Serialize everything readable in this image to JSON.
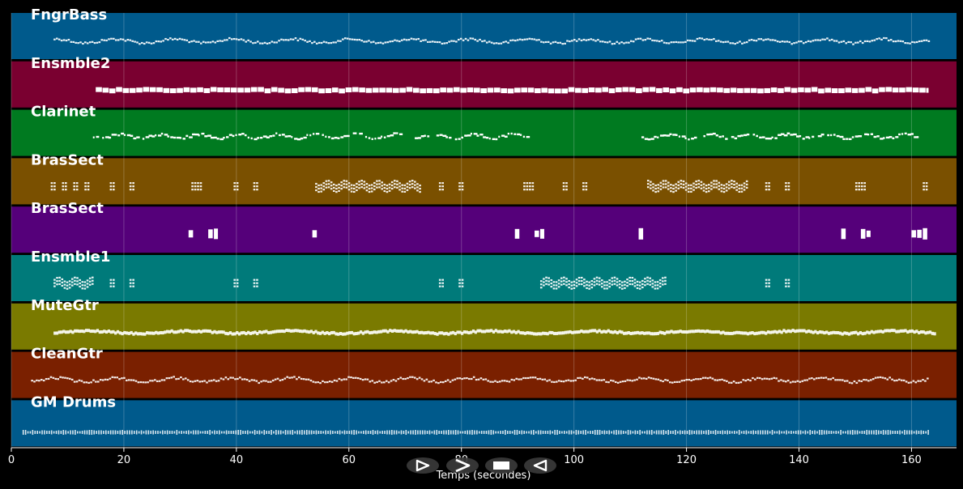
{
  "chart_data": {
    "type": "piano-roll",
    "xlabel": "Temps (secondes)",
    "xlim": [
      0,
      168
    ],
    "x_ticks": [
      0,
      20,
      40,
      60,
      80,
      100,
      120,
      140,
      160
    ],
    "grid": true,
    "tracks": [
      {
        "name": "FngrBass",
        "color": "#005a8c",
        "activity": [
          [
            7.5,
            163
          ]
        ],
        "style": "dense-small"
      },
      {
        "name": "Ensmble2",
        "color": "#7a0030",
        "activity": [
          [
            15,
            163
          ]
        ],
        "style": "sustained"
      },
      {
        "name": "Clarinet",
        "color": "#007a20",
        "activity": [
          [
            14.5,
            93
          ],
          [
            112,
            163
          ]
        ],
        "style": "melody"
      },
      {
        "name": "BrasSect",
        "color": "#7a5000",
        "activity": [
          [
            7,
            8
          ],
          [
            9,
            10
          ],
          [
            11,
            12
          ],
          [
            13,
            14
          ],
          [
            17.5,
            18.5
          ],
          [
            21,
            22
          ],
          [
            32,
            34
          ],
          [
            39.5,
            40.5
          ],
          [
            43,
            44
          ],
          [
            54,
            72.5
          ],
          [
            76,
            77
          ],
          [
            79.5,
            80.5
          ],
          [
            91,
            93
          ],
          [
            98,
            99
          ],
          [
            101.5,
            102.5
          ],
          [
            113,
            131
          ],
          [
            134,
            135
          ],
          [
            137.5,
            138.5
          ],
          [
            150,
            152
          ],
          [
            162,
            163
          ]
        ],
        "style": "chords"
      },
      {
        "name": "BrasSect",
        "color": "#55007a",
        "activity": [
          [
            31.5,
            32.5
          ],
          [
            35,
            36.5
          ],
          [
            53.5,
            54.5
          ],
          [
            89.5,
            90.5
          ],
          [
            93,
            94.5
          ],
          [
            111.5,
            112.5
          ],
          [
            147.5,
            148.5
          ],
          [
            151,
            152.5
          ],
          [
            160,
            163
          ]
        ],
        "style": "blocks"
      },
      {
        "name": "Ensmble1",
        "color": "#007a7a",
        "activity": [
          [
            7.5,
            14.5
          ],
          [
            17.5,
            18.5
          ],
          [
            21,
            22
          ],
          [
            39.5,
            40.5
          ],
          [
            43,
            44
          ],
          [
            76,
            77
          ],
          [
            79.5,
            80.5
          ],
          [
            94,
            116.5
          ],
          [
            134,
            135
          ],
          [
            137.5,
            138.5
          ]
        ],
        "style": "chords"
      },
      {
        "name": "MuteGtr",
        "color": "#7a7a00",
        "activity": [
          [
            7.5,
            164
          ]
        ],
        "style": "dense"
      },
      {
        "name": "CleanGtr",
        "color": "#7a2000",
        "activity": [
          [
            3.5,
            163
          ]
        ],
        "style": "dense-small"
      },
      {
        "name": "GM Drums",
        "color": "#005a8c",
        "activity": [
          [
            2,
            163
          ]
        ],
        "style": "drums"
      }
    ]
  },
  "transport": {
    "buttons": [
      {
        "name": "rewind-button",
        "icon": "rewind-icon"
      },
      {
        "name": "play-button",
        "icon": "play-icon"
      },
      {
        "name": "stop-button",
        "icon": "stop-icon"
      },
      {
        "name": "forward-button",
        "icon": "forward-icon"
      }
    ]
  }
}
